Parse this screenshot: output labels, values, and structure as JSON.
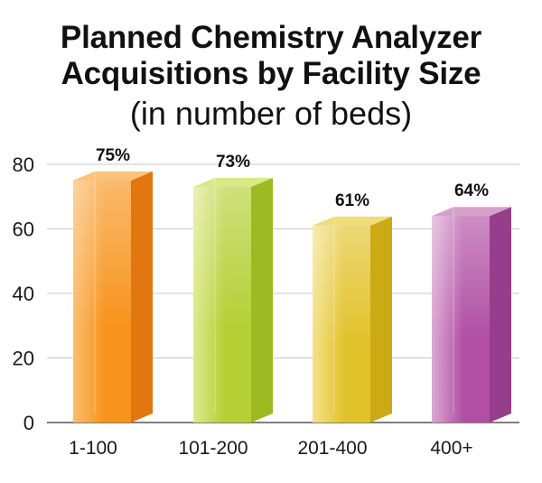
{
  "title_lines": [
    "Planned Chemistry Analyzer",
    "Acquisitions by Facility Size"
  ],
  "subtitle": "(in number of beds)",
  "chart_data": {
    "type": "bar",
    "title": "Planned Chemistry Analyzer Acquisitions by Facility Size",
    "subtitle": "(in number of beds)",
    "categories": [
      "1-100",
      "101-200",
      "201-400",
      "400+"
    ],
    "values": [
      75,
      73,
      61,
      64
    ],
    "data_labels": [
      "75%",
      "73%",
      "61%",
      "64%"
    ],
    "ylim": [
      0,
      80
    ],
    "yticks": [
      0,
      20,
      40,
      60,
      80
    ],
    "grid": true,
    "legend": "none",
    "colors": [
      {
        "front": "#f7941d",
        "light": "#fbbd6e",
        "side": "#e2770f",
        "top": "#fcc27a"
      },
      {
        "front": "#b5cf35",
        "light": "#dde98e",
        "side": "#9cba21",
        "top": "#d9e88a"
      },
      {
        "front": "#e2c22a",
        "light": "#f2e28a",
        "side": "#ccaa14",
        "top": "#efdc7a"
      },
      {
        "front": "#b04fa3",
        "light": "#dba8d2",
        "side": "#983d8c",
        "top": "#d6a0cc"
      }
    ]
  }
}
